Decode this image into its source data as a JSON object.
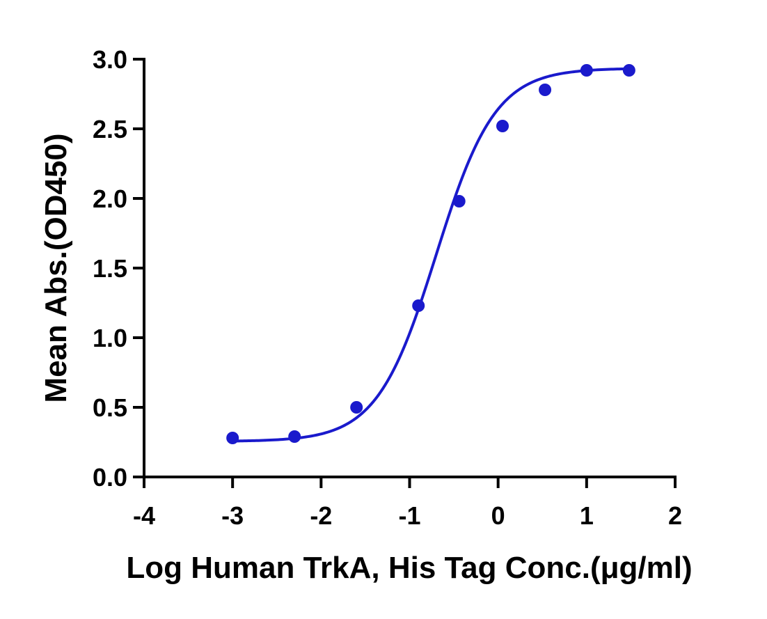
{
  "chart_data": {
    "type": "scatter",
    "title": "",
    "xlabel": "Log Human TrkA, His Tag Conc.(μg/ml)",
    "ylabel": "Mean Abs.(OD450)",
    "xlim": [
      -4,
      2
    ],
    "ylim": [
      0,
      3.0
    ],
    "x_ticks": [
      -4,
      -3,
      -2,
      -1,
      0,
      1,
      2
    ],
    "x_tick_labels": [
      "-4",
      "-3",
      "-2",
      "-1",
      "0",
      "1",
      "2"
    ],
    "y_ticks": [
      0,
      0.5,
      1.0,
      1.5,
      2.0,
      2.5,
      3.0
    ],
    "y_tick_labels": [
      "0.0",
      "0.5",
      "1.0",
      "1.5",
      "2.0",
      "2.5",
      "3.0"
    ],
    "grid": false,
    "legend": "none",
    "series": [
      {
        "points": [
          {
            "x": -3.0,
            "y": 0.28
          },
          {
            "x": -2.3,
            "y": 0.29
          },
          {
            "x": -1.6,
            "y": 0.5
          },
          {
            "x": -0.9,
            "y": 1.23
          },
          {
            "x": -0.44,
            "y": 1.98
          },
          {
            "x": 0.05,
            "y": 2.52
          },
          {
            "x": 0.53,
            "y": 2.78
          },
          {
            "x": 1.0,
            "y": 2.92
          },
          {
            "x": 1.48,
            "y": 2.92
          }
        ],
        "fit": {
          "model": "4PL sigmoid",
          "bottom": 0.255,
          "top": 2.935,
          "log_ec50": -0.7,
          "hill_slope": 1.3
        },
        "color": "#1a1acc"
      }
    ]
  }
}
